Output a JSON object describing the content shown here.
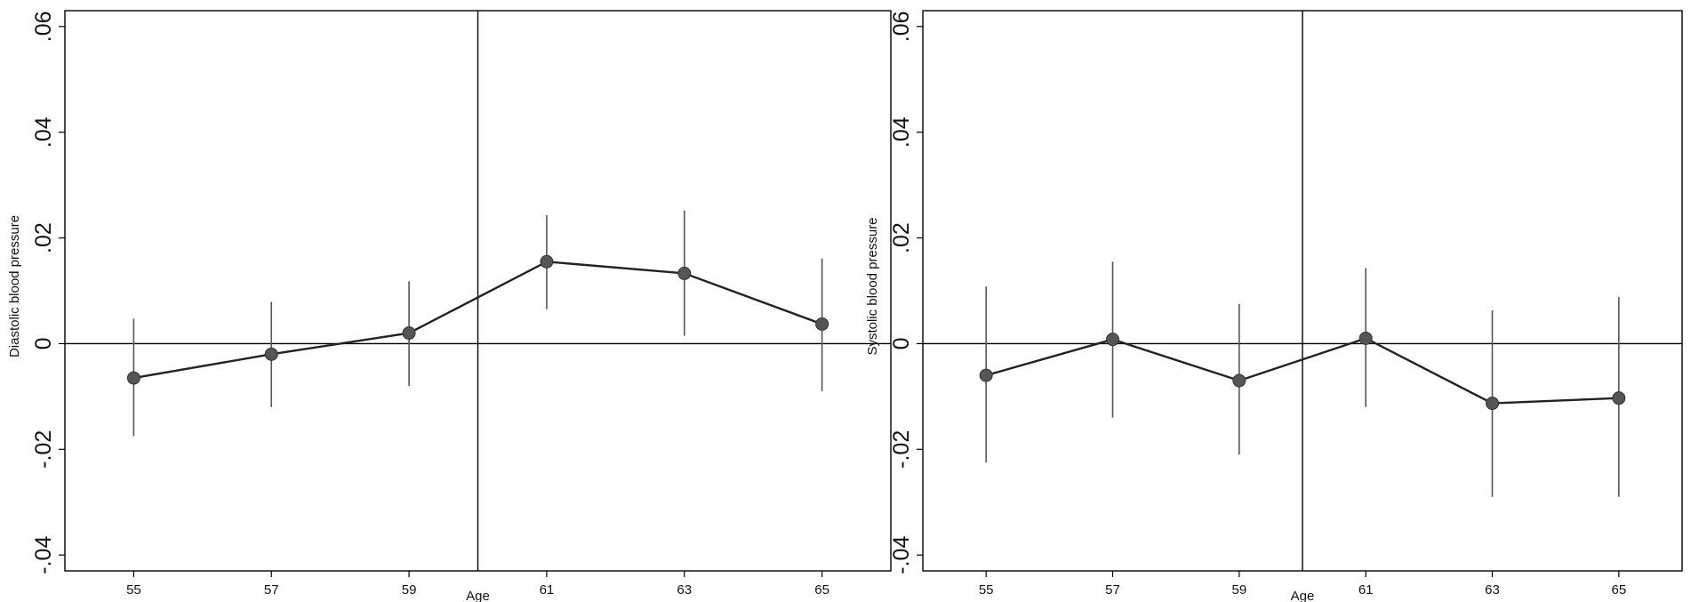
{
  "colors": {
    "line": "#222222",
    "marker": "#555555",
    "frame": "#000000",
    "background": "#ffffff"
  },
  "chart_data": [
    {
      "type": "line",
      "xlabel": "Age",
      "ylabel": "Diastolic blood pressure",
      "xlim": [
        54,
        66
      ],
      "ylim": [
        -0.043,
        0.063
      ],
      "xticks": [
        55,
        57,
        59,
        61,
        63,
        65
      ],
      "xtick_labels": [
        "55",
        "57",
        "59",
        "61",
        "63",
        "65"
      ],
      "yticks": [
        -0.04,
        -0.02,
        0,
        0.02,
        0.04,
        0.06
      ],
      "ytick_labels": [
        "-.04",
        "-.02",
        "0",
        ".02",
        ".04",
        ".06"
      ],
      "reference_lines": {
        "vertical_x": 60,
        "horizontal_y": 0
      },
      "grid": false,
      "series": [
        {
          "x": [
            55,
            57,
            59,
            61,
            63,
            65
          ],
          "y": [
            -0.0065,
            -0.002,
            0.002,
            0.0155,
            0.0133,
            0.0037
          ],
          "ci_low": [
            -0.0175,
            -0.012,
            -0.008,
            0.0065,
            0.0015,
            -0.009
          ],
          "ci_high": [
            0.0047,
            0.0079,
            0.0118,
            0.0243,
            0.0252,
            0.0161
          ]
        }
      ]
    },
    {
      "type": "line",
      "xlabel": "Age",
      "ylabel": "Systolic blood pressure",
      "xlim": [
        54,
        66
      ],
      "ylim": [
        -0.043,
        0.063
      ],
      "xticks": [
        55,
        57,
        59,
        61,
        63,
        65
      ],
      "xtick_labels": [
        "55",
        "57",
        "59",
        "61",
        "63",
        "65"
      ],
      "yticks": [
        -0.04,
        -0.02,
        0,
        0.02,
        0.04,
        0.06
      ],
      "ytick_labels": [
        "-.04",
        "-.02",
        "0",
        ".02",
        ".04",
        ".06"
      ],
      "reference_lines": {
        "vertical_x": 60,
        "horizontal_y": 0
      },
      "grid": false,
      "series": [
        {
          "x": [
            55,
            57,
            59,
            61,
            63,
            65
          ],
          "y": [
            -0.006,
            0.0008,
            -0.007,
            0.001,
            -0.0113,
            -0.0103
          ],
          "ci_low": [
            -0.0225,
            -0.014,
            -0.021,
            -0.012,
            -0.029,
            -0.029
          ],
          "ci_high": [
            0.0108,
            0.0155,
            0.0075,
            0.0143,
            0.0063,
            0.0088
          ]
        }
      ]
    }
  ]
}
